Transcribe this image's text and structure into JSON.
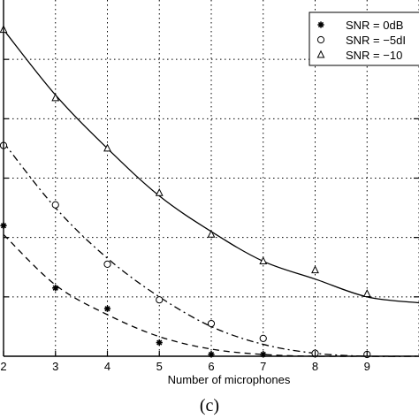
{
  "chart_data": {
    "type": "line",
    "title": "",
    "xlabel": "Number of microphones",
    "ylabel": "",
    "caption": "(c)",
    "x": [
      2,
      3,
      4,
      5,
      6,
      7,
      8,
      9,
      10
    ],
    "x_tick_labels": [
      "2",
      "3",
      "4",
      "5",
      "6",
      "7",
      "8",
      "9"
    ],
    "xlim": [
      2,
      10
    ],
    "ylim": [
      0,
      6
    ],
    "grid": true,
    "legend_position": "top-right",
    "series": [
      {
        "name": "SNR = 0dB",
        "legend_label": "SNR = 0dB",
        "marker": "star",
        "line_style": "dashed",
        "points": [
          2.2,
          1.15,
          0.8,
          0.23,
          0.03,
          0.03,
          0.03,
          0.03
        ],
        "fit": [
          2.05,
          1.2,
          0.7,
          0.33,
          0.12,
          0.03,
          0.0,
          0.0,
          0.0
        ]
      },
      {
        "name": "SNR = -5dB",
        "legend_label": "SNR = −5dI",
        "marker": "circle",
        "line_style": "dash-dot",
        "points": [
          3.55,
          2.55,
          1.55,
          0.95,
          0.55,
          0.3,
          0.05,
          0.03
        ],
        "fit": [
          3.6,
          2.5,
          1.65,
          1.0,
          0.5,
          0.2,
          0.05,
          0.0,
          0.0
        ]
      },
      {
        "name": "SNR = -10dB",
        "legend_label": "SNR = −10",
        "marker": "triangle",
        "line_style": "solid",
        "points": [
          5.5,
          4.35,
          3.5,
          2.75,
          2.05,
          1.6,
          1.45,
          1.05
        ],
        "fit": [
          5.5,
          4.4,
          3.5,
          2.7,
          2.1,
          1.6,
          1.3,
          1.0,
          0.9
        ]
      }
    ]
  }
}
